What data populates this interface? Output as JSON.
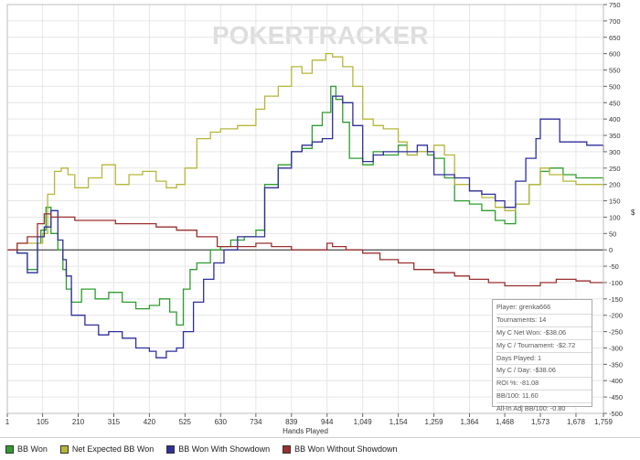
{
  "watermark": "POKERTRACKER",
  "chart_data": {
    "type": "line",
    "xlabel": "Hands Played",
    "ylabel": "$",
    "xlim": [
      1,
      1759
    ],
    "ylim": [
      -500,
      750
    ],
    "x_ticks": [
      1,
      105,
      210,
      315,
      420,
      525,
      630,
      734,
      839,
      944,
      1049,
      1154,
      1259,
      1364,
      1468,
      1573,
      1678,
      1759
    ],
    "x_tick_labels": [
      "1",
      "105",
      "210",
      "315",
      "420",
      "525",
      "630",
      "734",
      "839",
      "944",
      "1,049",
      "1,154",
      "1,259",
      "1,364",
      "1,468",
      "1,573",
      "1,678",
      "1,759"
    ],
    "y_ticks": [
      -500,
      -450,
      -400,
      -350,
      -300,
      -250,
      -200,
      -150,
      -100,
      -50,
      0,
      50,
      100,
      150,
      200,
      250,
      300,
      350,
      400,
      450,
      500,
      550,
      600,
      650,
      700,
      750
    ],
    "grid": true,
    "legend_position": "bottom",
    "series": [
      {
        "name": "BB Won",
        "color": "#2e9d2e",
        "x": [
          1,
          30,
          60,
          90,
          100,
          115,
          130,
          150,
          165,
          175,
          190,
          220,
          260,
          300,
          340,
          380,
          420,
          450,
          480,
          500,
          520,
          540,
          560,
          600,
          630,
          660,
          700,
          734,
          760,
          800,
          839,
          870,
          900,
          930,
          955,
          970,
          990,
          1010,
          1049,
          1080,
          1110,
          1154,
          1180,
          1210,
          1240,
          1259,
          1290,
          1320,
          1364,
          1400,
          1440,
          1468,
          1500,
          1540,
          1573,
          1600,
          1640,
          1678,
          1710,
          1759
        ],
        "y": [
          0,
          -10,
          -60,
          20,
          60,
          130,
          50,
          0,
          -60,
          -120,
          -160,
          -120,
          -150,
          -130,
          -160,
          -180,
          -170,
          -150,
          -190,
          -230,
          -120,
          -60,
          -40,
          0,
          10,
          30,
          40,
          60,
          200,
          260,
          300,
          310,
          380,
          420,
          500,
          460,
          390,
          280,
          260,
          300,
          290,
          320,
          290,
          300,
          290,
          280,
          220,
          150,
          140,
          120,
          90,
          80,
          140,
          200,
          240,
          250,
          230,
          220,
          220,
          210
        ]
      },
      {
        "name": "Net Expected BB Won",
        "color": "#b6b63a",
        "x": [
          1,
          30,
          60,
          90,
          105,
          120,
          140,
          160,
          180,
          200,
          240,
          280,
          320,
          360,
          400,
          440,
          470,
          500,
          525,
          560,
          600,
          630,
          680,
          734,
          760,
          800,
          839,
          870,
          900,
          940,
          960,
          990,
          1020,
          1049,
          1080,
          1110,
          1154,
          1180,
          1210,
          1259,
          1290,
          1320,
          1364,
          1400,
          1440,
          1468,
          1500,
          1540,
          1573,
          1600,
          1640,
          1678,
          1710,
          1759
        ],
        "y": [
          0,
          20,
          20,
          20,
          50,
          170,
          240,
          250,
          230,
          190,
          220,
          260,
          200,
          230,
          240,
          210,
          190,
          200,
          250,
          340,
          360,
          370,
          380,
          430,
          470,
          500,
          560,
          540,
          580,
          600,
          590,
          560,
          500,
          400,
          380,
          370,
          330,
          290,
          300,
          320,
          290,
          200,
          180,
          160,
          130,
          120,
          140,
          200,
          250,
          230,
          210,
          200,
          200,
          190
        ]
      },
      {
        "name": "BB Won With Showdown",
        "color": "#2f2f9a",
        "x": [
          1,
          30,
          60,
          90,
          110,
          130,
          150,
          165,
          175,
          190,
          230,
          270,
          300,
          340,
          380,
          420,
          440,
          470,
          500,
          520,
          550,
          580,
          610,
          640,
          680,
          734,
          760,
          800,
          839,
          870,
          900,
          930,
          960,
          990,
          1020,
          1049,
          1080,
          1110,
          1154,
          1180,
          1210,
          1240,
          1259,
          1290,
          1320,
          1364,
          1400,
          1440,
          1468,
          1500,
          1530,
          1560,
          1573,
          1600,
          1630,
          1678,
          1710,
          1759
        ],
        "y": [
          0,
          -10,
          -70,
          40,
          70,
          120,
          30,
          -30,
          -80,
          -200,
          -230,
          -260,
          -250,
          -270,
          -300,
          -310,
          -330,
          -310,
          -300,
          -250,
          -160,
          -90,
          -40,
          0,
          40,
          40,
          190,
          250,
          300,
          320,
          330,
          340,
          470,
          450,
          380,
          270,
          290,
          300,
          300,
          300,
          320,
          300,
          230,
          230,
          220,
          180,
          170,
          150,
          130,
          210,
          280,
          340,
          400,
          400,
          330,
          330,
          320,
          300
        ]
      },
      {
        "name": "BB Won Without Showdown",
        "color": "#9a2f2f",
        "x": [
          1,
          30,
          60,
          90,
          110,
          130,
          160,
          200,
          260,
          320,
          380,
          440,
          500,
          560,
          620,
          680,
          734,
          780,
          839,
          880,
          920,
          944,
          960,
          1000,
          1049,
          1100,
          1154,
          1200,
          1259,
          1320,
          1364,
          1420,
          1468,
          1520,
          1573,
          1620,
          1678,
          1720,
          1759
        ],
        "y": [
          0,
          20,
          40,
          80,
          110,
          100,
          100,
          90,
          90,
          80,
          80,
          70,
          60,
          40,
          10,
          10,
          20,
          10,
          0,
          0,
          0,
          20,
          10,
          0,
          -10,
          -30,
          -40,
          -60,
          -70,
          -80,
          -90,
          -100,
          -110,
          -110,
          -100,
          -90,
          -95,
          -100,
          -100
        ]
      }
    ]
  },
  "stats": {
    "player": "Player: grenka666",
    "tournaments": "Tournaments: 14",
    "net_won": "My C Net Won: -$38.06",
    "per_tournament": "My C / Tournament: -$2.72",
    "days_played": "Days Played: 1",
    "per_day": "My C / Day: -$38.06",
    "roi": "ROI %: -81.08",
    "bb100": "BB/100: 11.60",
    "allin_bb100": "All-In Adj BB/100: -0.80"
  },
  "legend": [
    {
      "label": "BB Won",
      "color": "#2e9d2e"
    },
    {
      "label": "Net Expected BB Won",
      "color": "#b6b63a"
    },
    {
      "label": "BB Won With Showdown",
      "color": "#2f2f9a"
    },
    {
      "label": "BB Won Without Showdown",
      "color": "#9a2f2f"
    }
  ]
}
